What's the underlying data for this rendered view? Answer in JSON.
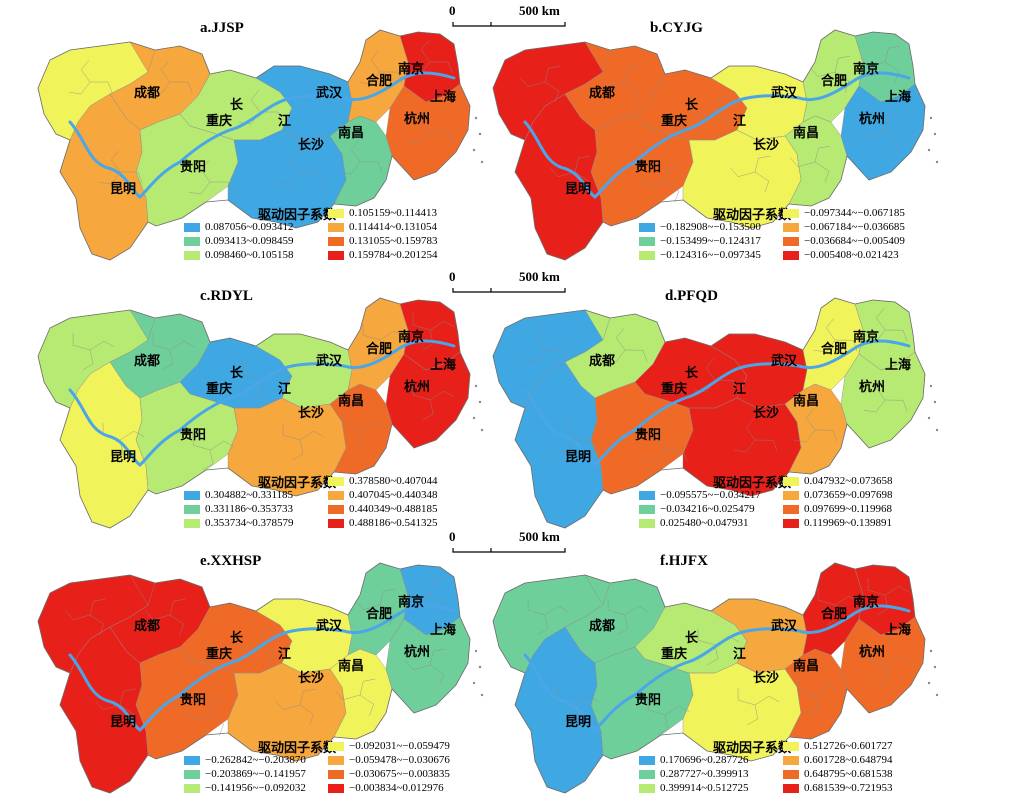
{
  "legend_title": "驱动因子系数",
  "scale": {
    "zero": "0",
    "dist": "500 km"
  },
  "cities": {
    "chengdu": "成都",
    "chongqing": "重庆",
    "kunming": "昆明",
    "guiyang": "贵阳",
    "wuhan": "武汉",
    "changsha": "长沙",
    "nanchang": "南昌",
    "hefei": "合肥",
    "nanjing": "南京",
    "shanghai": "上海",
    "hangzhou": "杭州",
    "chang": "长",
    "jiang": "江"
  },
  "colors": {
    "c1": "#3fa7e2",
    "c2": "#6fcf9b",
    "c3": "#b6ea73",
    "c4": "#f0f35a",
    "c5": "#f6a73d",
    "c6": "#f06a27",
    "c7": "#e8201a",
    "river": "#4aa6e8",
    "border": "#8a8a8a"
  },
  "panels": [
    {
      "title": "a.JJSP",
      "zones": {
        "west": "c4",
        "sw": "c5",
        "chengdu": "c5",
        "chongqing": "c3",
        "guiyang": "c3",
        "hunan": "c1",
        "hubei": "c1",
        "jiangxi": "c2",
        "anhui": "c5",
        "jiangsu": "c7",
        "zhejiang": "c6"
      },
      "legend": [
        "0.087056~0.093412",
        "0.093413~0.098459",
        "0.098460~0.105158",
        "0.105159~0.114413",
        "0.114414~0.131054",
        "0.131055~0.159783",
        "0.159784~0.201254"
      ]
    },
    {
      "title": "b.CYJG",
      "zones": {
        "west": "c7",
        "sw": "c7",
        "chengdu": "c6",
        "chongqing": "c6",
        "guiyang": "c6",
        "hunan": "c4",
        "hubei": "c4",
        "jiangxi": "c3",
        "anhui": "c3",
        "jiangsu": "c2",
        "zhejiang": "c1"
      },
      "legend": [
        "−0.182908~−0.153500",
        "−0.153499~−0.124317",
        "−0.124316~−0.097345",
        "−0.097344~−0.067185",
        "−0.067184~−0.036685",
        "−0.036684~−0.005409",
        "−0.005408~0.021423"
      ]
    },
    {
      "title": "c.RDYL",
      "zones": {
        "west": "c3",
        "sw": "c4",
        "chengdu": "c2",
        "chongqing": "c1",
        "guiyang": "c3",
        "hunan": "c5",
        "hubei": "c3",
        "jiangxi": "c6",
        "anhui": "c5",
        "jiangsu": "c7",
        "zhejiang": "c7"
      },
      "legend": [
        "0.304882~0.331185",
        "0.331186~0.353733",
        "0.353734~0.378579",
        "0.378580~0.407044",
        "0.407045~0.440348",
        "0.440349~0.488185",
        "0.488186~0.541325"
      ]
    },
    {
      "title": "d.PFQD",
      "zones": {
        "west": "c1",
        "sw": "c1",
        "chengdu": "c3",
        "chongqing": "c7",
        "guiyang": "c6",
        "hunan": "c7",
        "hubei": "c7",
        "jiangxi": "c5",
        "anhui": "c4",
        "jiangsu": "c3",
        "zhejiang": "c3"
      },
      "legend": [
        "−0.095575~−0.034217",
        "−0.034216~0.025479",
        "0.025480~0.047931",
        "0.047932~0.073658",
        "0.073659~0.097698",
        "0.097699~0.119968",
        "0.119969~0.139891"
      ]
    },
    {
      "title": "e.XXHSP",
      "zones": {
        "west": "c7",
        "sw": "c7",
        "chengdu": "c7",
        "chongqing": "c6",
        "guiyang": "c6",
        "hunan": "c5",
        "hubei": "c4",
        "jiangxi": "c4",
        "anhui": "c2",
        "jiangsu": "c1",
        "zhejiang": "c2"
      },
      "legend": [
        "−0.262842~−0.203870",
        "−0.203869~−0.141957",
        "−0.141956~−0.092032",
        "−0.092031~−0.059479",
        "−0.059478~−0.030676",
        "−0.030675~−0.003835",
        "−0.003834~0.012976"
      ]
    },
    {
      "title": "f.HJFX",
      "zones": {
        "west": "c2",
        "sw": "c1",
        "chengdu": "c2",
        "chongqing": "c3",
        "guiyang": "c2",
        "hunan": "c4",
        "hubei": "c5",
        "jiangxi": "c6",
        "anhui": "c7",
        "jiangsu": "c7",
        "zhejiang": "c6"
      },
      "legend": [
        "0.170696~0.287726",
        "0.287727~0.399913",
        "0.399914~0.512725",
        "0.512726~0.601727",
        "0.601728~0.648794",
        "0.648795~0.681538",
        "0.681539~0.721953"
      ]
    }
  ]
}
